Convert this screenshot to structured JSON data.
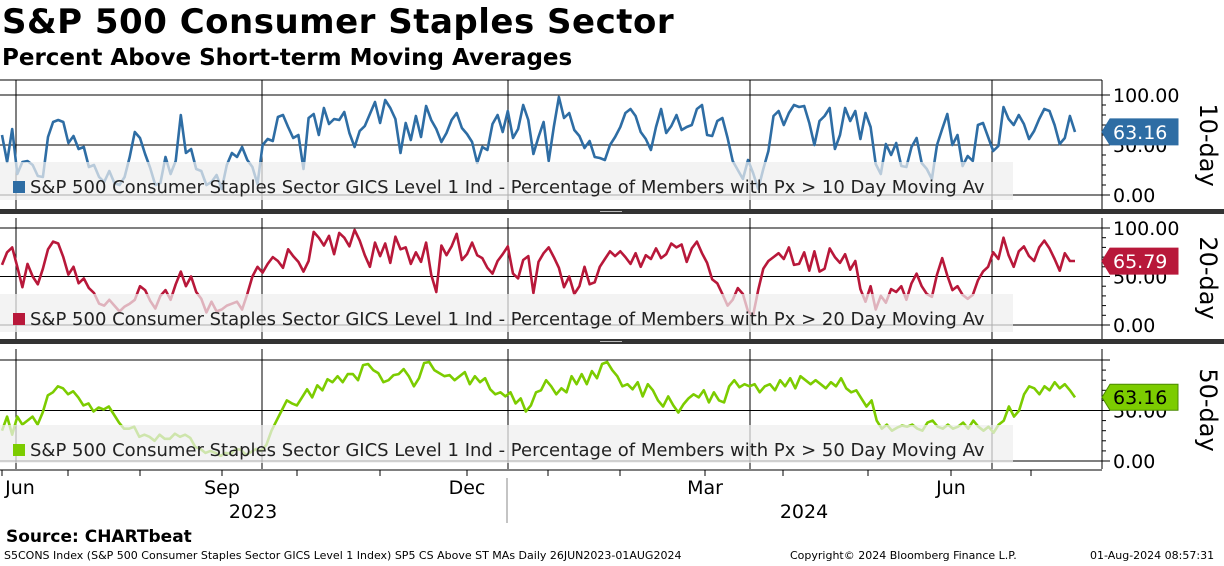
{
  "title": "S&P 500 Consumer Staples Sector",
  "subtitle": "Percent Above Short-term Moving Averages",
  "footer": {
    "source": "Source: CHARTbeat",
    "index_info": "S5CONS Index (S&P 500 Consumer Staples Sector GICS Level 1 Index) SP5 CS Above ST MAs  Daily 26JUN2023-01AUG2024",
    "copyright": "Copyright© 2024 Bloomberg Finance L.P.",
    "timestamp": "01-Aug-2024 08:57:31"
  },
  "colors": {
    "panel1": "#2e6da4",
    "panel1_light": "#8fb2d8",
    "panel2": "#b8183a",
    "panel2_light": "#e0a0ad",
    "panel3": "#7ccc00",
    "panel3_light": "#c6e89a",
    "grid": "#000000",
    "legend_bg": "#efefef"
  },
  "chart_data": {
    "type": "line",
    "x_tick_labels": [
      "Jun",
      "Sep",
      "Dec",
      "Mar",
      "Jun"
    ],
    "year_labels": [
      "2023",
      "2024"
    ],
    "date_range": [
      "2023-06-26",
      "2024-08-01"
    ],
    "panels": [
      {
        "side_label": "10-day",
        "legend": "S&P 500 Consumer Staples Sector GICS Level 1 Ind - Percentage of Members with Px > 10 Day Moving Av",
        "y_ticks": [
          "100.00",
          "50.00",
          "0.00"
        ],
        "ylim": [
          0,
          100
        ],
        "last_value": "63.16",
        "last": 63.16,
        "values": [
          60,
          33,
          66,
          21,
          33,
          34,
          30,
          19,
          18,
          58,
          73,
          75,
          73,
          52,
          59,
          46,
          48,
          28,
          30,
          18,
          13,
          24,
          12,
          10,
          18,
          38,
          63,
          57,
          41,
          27,
          10,
          12,
          38,
          21,
          34,
          80,
          42,
          46,
          26,
          24,
          10,
          13,
          20,
          6,
          30,
          42,
          38,
          48,
          35,
          28,
          11,
          50,
          56,
          54,
          78,
          80,
          68,
          57,
          60,
          26,
          77,
          81,
          60,
          87,
          71,
          76,
          75,
          83,
          62,
          48,
          64,
          69,
          81,
          93,
          72,
          95,
          87,
          76,
          42,
          72,
          55,
          79,
          58,
          89,
          75,
          66,
          53,
          62,
          75,
          82,
          67,
          61,
          53,
          32,
          48,
          45,
          71,
          80,
          63,
          84,
          57,
          66,
          90,
          75,
          41,
          58,
          73,
          34,
          68,
          98,
          77,
          82,
          65,
          59,
          47,
          54,
          38,
          37,
          35,
          50,
          58,
          68,
          82,
          86,
          79,
          63,
          56,
          45,
          68,
          86,
          62,
          69,
          80,
          65,
          68,
          70,
          86,
          90,
          60,
          59,
          74,
          77,
          57,
          34,
          25,
          16,
          35,
          22,
          6,
          26,
          44,
          79,
          84,
          70,
          82,
          90,
          88,
          89,
          72,
          50,
          74,
          79,
          87,
          46,
          60,
          87,
          74,
          84,
          56,
          82,
          68,
          31,
          21,
          51,
          40,
          52,
          29,
          28,
          48,
          57,
          32,
          26,
          16,
          50,
          66,
          81,
          50,
          60,
          29,
          39,
          34,
          70,
          72,
          58,
          44,
          49,
          88,
          76,
          70,
          80,
          71,
          56,
          64,
          76,
          86,
          84,
          70,
          51,
          57,
          79,
          63
        ],
        "line_color_key": "panel1",
        "light_color_key": "panel1_light"
      },
      {
        "side_label": "20-day",
        "legend": "S&P 500 Consumer Staples Sector GICS Level 1 Ind - Percentage of Members with Px > 20 Day Moving Av",
        "y_ticks": [
          "100.00",
          "50.00",
          "0.00"
        ],
        "ylim": [
          0,
          100
        ],
        "last_value": "65.79",
        "last": 65.79,
        "values": [
          62,
          75,
          80,
          60,
          39,
          63,
          50,
          42,
          58,
          78,
          86,
          84,
          70,
          52,
          60,
          43,
          48,
          38,
          33,
          22,
          20,
          26,
          20,
          14,
          19,
          22,
          26,
          40,
          36,
          25,
          17,
          30,
          36,
          26,
          42,
          55,
          40,
          50,
          34,
          27,
          13,
          24,
          14,
          16,
          20,
          22,
          24,
          16,
          32,
          50,
          60,
          54,
          63,
          70,
          66,
          59,
          78,
          71,
          65,
          55,
          66,
          96,
          90,
          82,
          92,
          73,
          95,
          90,
          81,
          98,
          87,
          72,
          60,
          85,
          71,
          84,
          64,
          91,
          78,
          80,
          63,
          75,
          65,
          85,
          52,
          34,
          82,
          72,
          81,
          94,
          67,
          73,
          85,
          72,
          69,
          59,
          53,
          66,
          73,
          81,
          53,
          48,
          67,
          71,
          33,
          65,
          74,
          80,
          70,
          59,
          39,
          50,
          32,
          40,
          60,
          42,
          44,
          60,
          68,
          76,
          71,
          76,
          70,
          63,
          74,
          60,
          72,
          68,
          79,
          69,
          73,
          84,
          80,
          83,
          65,
          79,
          86,
          74,
          64,
          47,
          43,
          32,
          20,
          26,
          38,
          32,
          14,
          10,
          36,
          58,
          66,
          70,
          74,
          68,
          80,
          62,
          63,
          75,
          56,
          76,
          55,
          58,
          79,
          70,
          64,
          73,
          57,
          66,
          37,
          24,
          40,
          16,
          30,
          23,
          37,
          34,
          40,
          26,
          43,
          53,
          40,
          32,
          29,
          52,
          69,
          51,
          36,
          40,
          31,
          27,
          31,
          46,
          55,
          60,
          75,
          68,
          90,
          72,
          60,
          76,
          81,
          71,
          66,
          80,
          87,
          79,
          68,
          56,
          74,
          66,
          66
        ],
        "line_color_key": "panel2",
        "light_color_key": "panel2_light"
      },
      {
        "side_label": "50-day",
        "legend": "S&P 500 Consumer Staples Sector GICS Level 1 Ind - Percentage of Members with Px > 50 Day Moving Av",
        "y_ticks": [
          "",
          "50.00",
          "0.00"
        ],
        "ylim": [
          0,
          100
        ],
        "last_value": "63.16",
        "last": 63.16,
        "values": [
          30,
          44,
          26,
          44,
          36,
          40,
          44,
          36,
          48,
          65,
          68,
          74,
          72,
          66,
          69,
          63,
          55,
          57,
          49,
          53,
          51,
          54,
          46,
          38,
          32,
          32,
          34,
          24,
          26,
          24,
          20,
          26,
          22,
          22,
          27,
          24,
          26,
          23,
          14,
          12,
          8,
          10,
          8,
          5,
          8,
          7,
          12,
          11,
          6,
          9,
          12,
          10,
          16,
          30,
          40,
          50,
          60,
          57,
          55,
          63,
          71,
          63,
          75,
          70,
          81,
          78,
          84,
          78,
          86,
          86,
          80,
          95,
          96,
          90,
          87,
          78,
          80,
          85,
          86,
          91,
          84,
          74,
          82,
          97,
          98,
          90,
          87,
          84,
          85,
          80,
          84,
          88,
          76,
          84,
          78,
          82,
          71,
          66,
          68,
          64,
          68,
          57,
          62,
          49,
          55,
          68,
          70,
          80,
          74,
          66,
          72,
          68,
          84,
          76,
          86,
          76,
          89,
          82,
          96,
          98,
          90,
          84,
          74,
          76,
          71,
          78,
          64,
          76,
          70,
          60,
          54,
          64,
          55,
          48,
          56,
          62,
          66,
          63,
          70,
          58,
          68,
          60,
          58,
          74,
          80,
          73,
          76,
          74,
          76,
          68,
          74,
          76,
          70,
          80,
          74,
          82,
          72,
          84,
          80,
          76,
          80,
          76,
          72,
          78,
          74,
          82,
          72,
          68,
          70,
          62,
          54,
          60,
          40,
          32,
          36,
          30,
          33,
          35,
          34,
          36,
          32,
          30,
          38,
          40,
          34,
          32,
          36,
          32,
          34,
          38,
          32,
          40,
          34,
          30,
          34,
          28,
          36,
          40,
          54,
          44,
          50,
          66,
          74,
          72,
          66,
          74,
          70,
          78,
          72,
          76,
          70,
          63
        ],
        "line_color_key": "panel3",
        "light_color_key": "panel3_light"
      }
    ]
  }
}
